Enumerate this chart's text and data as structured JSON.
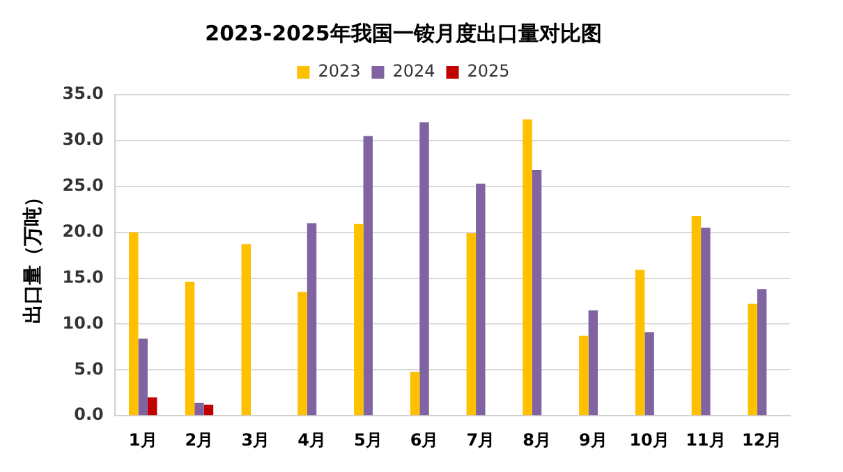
{
  "chart_data": {
    "type": "bar",
    "title": "2023-2025年我国一铵月度出口量对比图",
    "ylabel": "出口量（万吨）",
    "categories": [
      "1月",
      "2月",
      "3月",
      "4月",
      "5月",
      "6月",
      "7月",
      "8月",
      "9月",
      "10月",
      "11月",
      "12月"
    ],
    "series": [
      {
        "name": "2023",
        "color": "#ffc000",
        "values": [
          20.0,
          14.6,
          18.7,
          13.5,
          20.9,
          4.8,
          19.9,
          32.3,
          8.7,
          15.9,
          21.8,
          12.2
        ]
      },
      {
        "name": "2024",
        "color": "#8064a2",
        "values": [
          8.4,
          1.4,
          null,
          21.0,
          30.5,
          32.0,
          25.3,
          26.8,
          11.5,
          9.1,
          20.5,
          13.8
        ]
      },
      {
        "name": "2025",
        "color": "#c00000",
        "values": [
          2.0,
          1.2,
          null,
          null,
          null,
          null,
          null,
          null,
          null,
          null,
          null,
          null
        ]
      }
    ],
    "ylim": [
      0,
      35
    ],
    "yticks": [
      {
        "value": 0,
        "label": "0.0"
      },
      {
        "value": 5,
        "label": "5.0"
      },
      {
        "value": 10,
        "label": "10.0"
      },
      {
        "value": 15,
        "label": "15.0"
      },
      {
        "value": 20,
        "label": "20.0"
      },
      {
        "value": 25,
        "label": "25.0"
      },
      {
        "value": 30,
        "label": "30.0"
      },
      {
        "value": 35,
        "label": "35.0"
      }
    ],
    "grid": "y",
    "legend": "top"
  }
}
